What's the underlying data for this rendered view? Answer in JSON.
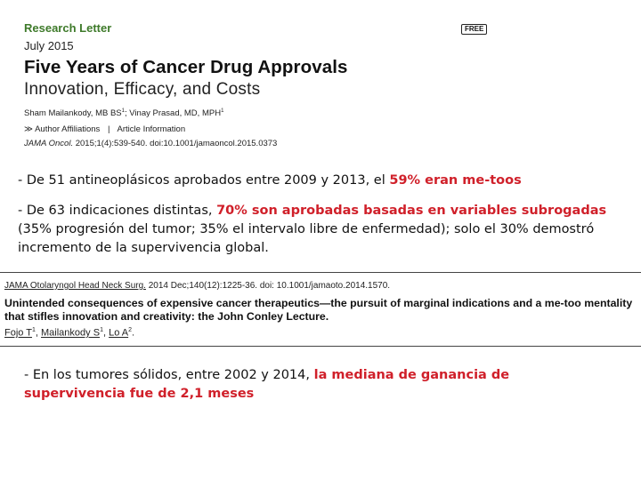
{
  "article": {
    "kicker": "Research Letter",
    "date": "July 2015",
    "badge": "FREE",
    "title": "Five Years of Cancer Drug Approvals",
    "subtitle": "Innovation, Efficacy, and Costs",
    "authors": {
      "author1": "Sham Mailankody, MB BS",
      "author1_sup": "1",
      "sep": "; ",
      "author2": "Vinay Prasad, MD, MPH",
      "author2_sup": "1"
    },
    "links": {
      "arrow": "≫",
      "affiliations": "Author Affiliations",
      "divider": "|",
      "info": "Article Information"
    },
    "citation": {
      "journal": "JAMA Oncol.",
      "rest": " 2015;1(4):539-540. doi:10.1001/jamaoncol.2015.0373"
    }
  },
  "bullets": {
    "b1": {
      "pre": "- De 51 antineoplásicos aprobados entre 2009 y 2013, el ",
      "highlight": "59% eran me-toos"
    },
    "b2": {
      "pre": "- De 63 indicaciones distintas, ",
      "highlight": "70% son aprobadas basadas en variables subrogadas",
      "post": " (35% progresión del tumor; 35% el intervalo libre de enfermedad); solo el 30% demostró incremento de la supervivencia global."
    },
    "b3": {
      "pre": "- En los tumores sólidos, entre 2002 y 2014, ",
      "highlight": "la mediana de ganancia de supervivencia fue de 2,1 meses"
    }
  },
  "reference": {
    "journal": "JAMA Otolaryngol Head Neck Surg.",
    "journal_rest": " 2014 Dec;140(12):1225-36. doi: 10.1001/jamaoto.2014.1570.",
    "title": "Unintended consequences of expensive cancer therapeutics—the pursuit of marginal indications and a me-too mentality that stifles innovation and creativity: the John Conley Lecture.",
    "authors": [
      {
        "name": "Fojo T",
        "sup": "1",
        "sep": ", "
      },
      {
        "name": "Mailankody S",
        "sup": "1",
        "sep": ", "
      },
      {
        "name": "Lo A",
        "sup": "2",
        "sep": "."
      }
    ]
  },
  "colors": {
    "highlight": "#d0202a",
    "kicker": "#3e7a2a"
  }
}
